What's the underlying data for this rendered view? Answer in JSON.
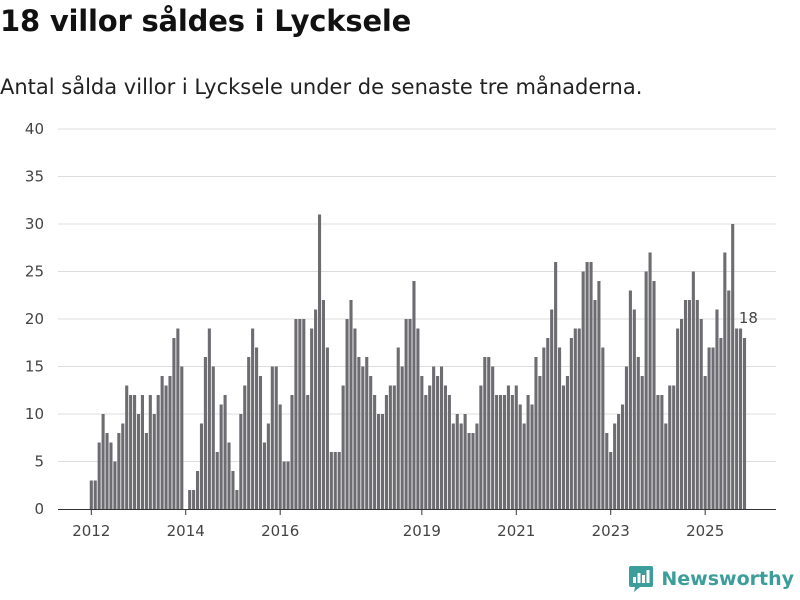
{
  "header": {
    "title": "18 villor såldes i Lycksele",
    "subtitle": "Antal sålda villor i Lycksele under de senaste tre månaderna."
  },
  "brand": {
    "name": "Newsworthy"
  },
  "colors": {
    "bar": "#6d6c71",
    "highlight": "#2b9a98",
    "grid": "#dddddd",
    "axis": "#333333",
    "brand": "#3c9e9a"
  },
  "chart_data": {
    "type": "bar",
    "title": "18 villor såldes i Lycksele",
    "subtitle": "Antal sålda villor i Lycksele under de senaste tre månaderna.",
    "xlabel": "",
    "ylabel": "",
    "ylim": [
      0,
      40
    ],
    "yticks": [
      0,
      5,
      10,
      15,
      20,
      25,
      30,
      35,
      40
    ],
    "grid": true,
    "frequency": "monthly",
    "start": "2012-01",
    "end": "2025-12",
    "xticks": [
      {
        "label": "2012",
        "index": 0
      },
      {
        "label": "2014",
        "index": 24
      },
      {
        "label": "2016",
        "index": 48
      },
      {
        "label": "2019",
        "index": 84
      },
      {
        "label": "2021",
        "index": 108
      },
      {
        "label": "2023",
        "index": 132
      },
      {
        "label": "2025",
        "index": 156
      }
    ],
    "values": [
      3,
      3,
      7,
      10,
      8,
      7,
      5,
      8,
      9,
      13,
      12,
      12,
      10,
      12,
      8,
      12,
      10,
      12,
      14,
      13,
      14,
      18,
      19,
      15,
      null,
      2,
      2,
      4,
      9,
      16,
      19,
      15,
      6,
      11,
      12,
      7,
      4,
      2,
      10,
      13,
      16,
      19,
      17,
      14,
      7,
      9,
      15,
      15,
      11,
      5,
      5,
      12,
      20,
      20,
      20,
      12,
      19,
      21,
      31,
      22,
      17,
      6,
      6,
      6,
      13,
      20,
      22,
      19,
      16,
      15,
      16,
      14,
      12,
      10,
      10,
      12,
      13,
      13,
      17,
      15,
      20,
      20,
      24,
      19,
      14,
      12,
      13,
      15,
      14,
      15,
      13,
      12,
      9,
      10,
      9,
      10,
      8,
      8,
      9,
      13,
      16,
      16,
      15,
      12,
      12,
      12,
      13,
      12,
      13,
      11,
      9,
      12,
      11,
      16,
      14,
      17,
      18,
      21,
      26,
      17,
      13,
      14,
      18,
      19,
      19,
      25,
      26,
      26,
      22,
      24,
      17,
      8,
      6,
      9,
      10,
      11,
      15,
      23,
      21,
      16,
      14,
      25,
      27,
      24,
      12,
      12,
      9,
      13,
      13,
      19,
      20,
      22,
      22,
      25,
      22,
      20,
      14,
      17,
      17,
      21,
      18,
      27,
      23,
      30,
      19,
      19,
      18
    ],
    "highlight": {
      "index": 167,
      "value": 18,
      "label": "18"
    }
  }
}
